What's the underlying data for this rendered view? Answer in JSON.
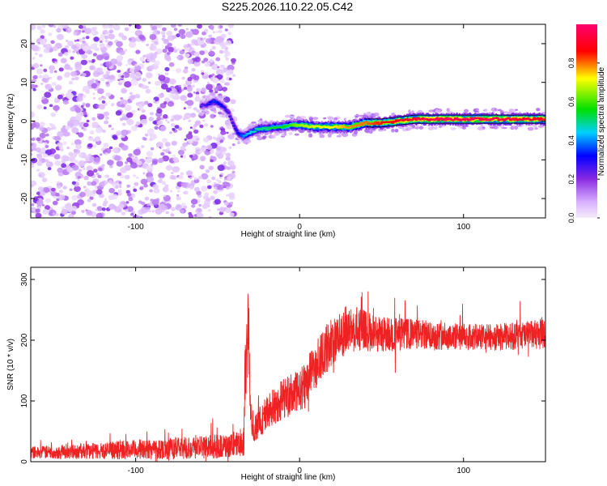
{
  "title": "S225.2026.110.22.05.C42",
  "colors": {
    "signal": "#ee2222",
    "axis": "#000000",
    "frame_bg": "#ffffff",
    "colorbar": [
      "#f4ecfb",
      "#d9b3ff",
      "#8a2be2",
      "#0000ff",
      "#00d0ff",
      "#00e000",
      "#ffff00",
      "#ff0000",
      "#ff0070"
    ]
  },
  "chart_data": [
    {
      "id": "spectrogram",
      "type": "heatmap",
      "xlabel": "Height of straight line (km)",
      "ylabel": "Frequency (Hz)",
      "xlim": [
        -164,
        150
      ],
      "ylim": [
        -25,
        25
      ],
      "xticks": [
        -100,
        0,
        100
      ],
      "yticks": [
        -20,
        -10,
        0,
        10,
        20
      ],
      "colorbar": {
        "label": "Normalized spectral amplitude",
        "range": [
          0,
          1
        ],
        "ticks": [
          "0.0",
          "0.2",
          "0.4",
          "0.6",
          "0.8"
        ]
      },
      "ridge": {
        "x": [
          -58,
          -52,
          -47,
          -43,
          -38,
          -34,
          -30,
          -25,
          -20,
          -15,
          -10,
          -5,
          0,
          10,
          20,
          30,
          40,
          50,
          60,
          70,
          80,
          90,
          100,
          110,
          120,
          130,
          140,
          150
        ],
        "y": [
          4,
          5,
          4,
          2,
          -3,
          -4,
          -3,
          -2,
          -2,
          -1.5,
          -1.5,
          -1,
          -1,
          -1.5,
          -1.5,
          -1.5,
          -0.5,
          -0.5,
          0,
          0.5,
          0.5,
          0.5,
          0.5,
          0.5,
          0.5,
          0.5,
          0.5,
          0.5
        ],
        "amplitude": [
          0.25,
          0.35,
          0.3,
          0.25,
          0.3,
          0.4,
          0.45,
          0.5,
          0.5,
          0.55,
          0.55,
          0.6,
          0.65,
          0.7,
          0.72,
          0.78,
          0.8,
          0.85,
          0.9,
          0.92,
          0.95,
          0.97,
          0.97,
          0.97,
          0.95,
          0.93,
          0.92,
          0.9
        ]
      },
      "noise_region_x": [
        -164,
        -40
      ],
      "noise_amplitude_range": [
        0,
        0.25
      ]
    },
    {
      "id": "snr",
      "type": "line",
      "xlabel": "Height of straight line (km)",
      "ylabel": "SNR (10 * v/v)",
      "xlim": [
        -164,
        150
      ],
      "ylim": [
        0,
        320
      ],
      "xticks": [
        -100,
        0,
        100
      ],
      "yticks": [
        0,
        100,
        200,
        300
      ],
      "trend": {
        "x": [
          -164,
          -120,
          -80,
          -50,
          -40,
          -34,
          -33,
          -31,
          -30,
          -28,
          -20,
          -10,
          0,
          10,
          20,
          30,
          40,
          50,
          70,
          100,
          120,
          150
        ],
        "y": [
          15,
          18,
          22,
          25,
          25,
          35,
          180,
          220,
          70,
          55,
          80,
          105,
          115,
          160,
          200,
          220,
          215,
          210,
          210,
          205,
          205,
          210
        ]
      },
      "noise_amplitude": [
        10,
        14,
        18,
        20,
        20,
        25,
        80,
        80,
        30,
        25,
        30,
        35,
        35,
        40,
        40,
        40,
        35,
        30,
        25,
        22,
        22,
        25
      ]
    }
  ]
}
